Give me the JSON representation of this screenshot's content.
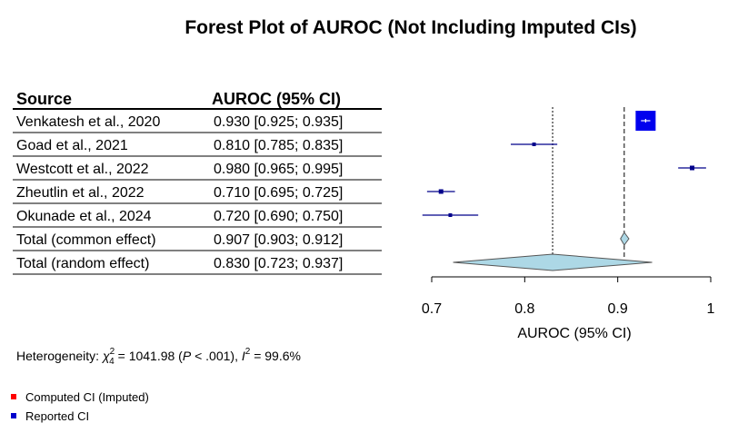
{
  "chart_data": {
    "type": "forest",
    "title": "Forest Plot of AUROC (Not Including Imputed CIs)",
    "columns": [
      "Source",
      "AUROC (95% CI)"
    ],
    "studies": [
      {
        "source": "Venkatesh et al., 2020",
        "label": "0.930 [0.925; 0.935]",
        "est": 0.93,
        "lo": 0.925,
        "hi": 0.935,
        "ci_type": "reported"
      },
      {
        "source": "Goad et al., 2021",
        "label": "0.810 [0.785; 0.835]",
        "est": 0.81,
        "lo": 0.785,
        "hi": 0.835,
        "ci_type": "reported"
      },
      {
        "source": "Westcott et al., 2022",
        "label": "0.980 [0.965; 0.995]",
        "est": 0.98,
        "lo": 0.965,
        "hi": 0.995,
        "ci_type": "reported"
      },
      {
        "source": "Zheutlin et al., 2022",
        "label": "0.710 [0.695; 0.725]",
        "est": 0.71,
        "lo": 0.695,
        "hi": 0.725,
        "ci_type": "reported"
      },
      {
        "source": "Okunade et al., 2024",
        "label": "0.720 [0.690; 0.750]",
        "est": 0.72,
        "lo": 0.69,
        "hi": 0.75,
        "ci_type": "reported"
      }
    ],
    "summaries": [
      {
        "source": "Total (common effect)",
        "label": "0.907 [0.903; 0.912]",
        "est": 0.907,
        "lo": 0.903,
        "hi": 0.912
      },
      {
        "source": "Total (random effect)",
        "label": "0.830 [0.723; 0.937]",
        "est": 0.83,
        "lo": 0.723,
        "hi": 0.937
      }
    ],
    "xlim": [
      0.7,
      1.0
    ],
    "xticks": [
      "0.7",
      "0.8",
      "0.9",
      "1"
    ],
    "xlabel": "AUROC (95% CI)",
    "heterogeneity": {
      "prefix": "Heterogeneity: ",
      "chi_sym": "χ",
      "chi_sub": "4",
      "chi_sup": "2",
      "chi_val": " = 1041.98 (",
      "p_sym": "P",
      "p_val": " < .001), ",
      "i_sym": "I",
      "i_sup": "2",
      "i_val": " = 99.6%"
    },
    "legend": [
      {
        "label": "Computed CI (Imputed)",
        "color": "#ff0000"
      },
      {
        "label": "Reported CI",
        "color": "#0000cc"
      }
    ],
    "colors": {
      "marker": "#00008b",
      "highlight_marker": "#0000ee",
      "diamond_fill": "#add8e6",
      "diamond_stroke": "#555555"
    }
  }
}
